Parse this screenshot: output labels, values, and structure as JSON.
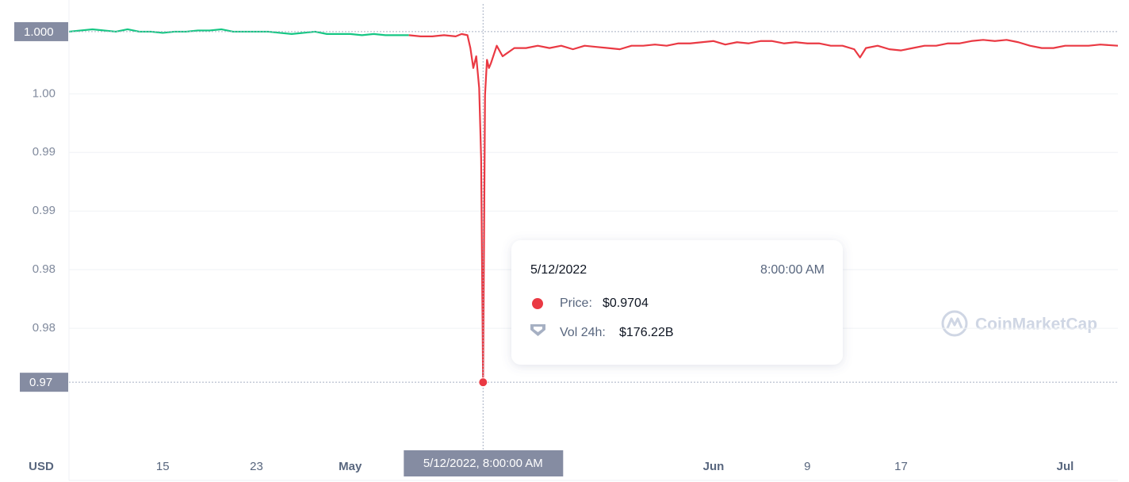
{
  "chart_data": {
    "type": "line",
    "y_axis_label": "USD",
    "watermark": "CoinMarketCap",
    "grid": true,
    "x": [
      "2022-04-07T00:00",
      "2022-04-08T00:00",
      "2022-04-09T00:00",
      "2022-04-10T00:00",
      "2022-04-11T00:00",
      "2022-04-12T00:00",
      "2022-04-13T00:00",
      "2022-04-14T00:00",
      "2022-04-15T00:00",
      "2022-04-16T00:00",
      "2022-04-17T00:00",
      "2022-04-18T00:00",
      "2022-04-19T00:00",
      "2022-04-20T00:00",
      "2022-04-21T00:00",
      "2022-04-22T00:00",
      "2022-04-23T00:00",
      "2022-04-24T00:00",
      "2022-04-25T00:00",
      "2022-04-26T00:00",
      "2022-04-27T00:00",
      "2022-04-28T00:00",
      "2022-04-29T00:00",
      "2022-04-30T00:00",
      "2022-05-01T00:00",
      "2022-05-02T00:00",
      "2022-05-03T00:00",
      "2022-05-04T00:00",
      "2022-05-05T00:00",
      "2022-05-06T00:00",
      "2022-05-07T00:00",
      "2022-05-08T00:00",
      "2022-05-09T00:00",
      "2022-05-10T00:00",
      "2022-05-10T12:00",
      "2022-05-11T00:00",
      "2022-05-11T06:00",
      "2022-05-11T12:00",
      "2022-05-11T18:00",
      "2022-05-12T00:00",
      "2022-05-12T04:00",
      "2022-05-12T08:00",
      "2022-05-12T12:00",
      "2022-05-12T16:00",
      "2022-05-12T20:00",
      "2022-05-13T00:00",
      "2022-05-13T12:00",
      "2022-05-14T00:00",
      "2022-05-15T00:00",
      "2022-05-16T00:00",
      "2022-05-17T00:00",
      "2022-05-18T00:00",
      "2022-05-19T00:00",
      "2022-05-20T00:00",
      "2022-05-21T00:00",
      "2022-05-22T00:00",
      "2022-05-23T00:00",
      "2022-05-24T00:00",
      "2022-05-25T00:00",
      "2022-05-26T00:00",
      "2022-05-27T00:00",
      "2022-05-28T00:00",
      "2022-05-29T00:00",
      "2022-05-30T00:00",
      "2022-05-31T00:00",
      "2022-06-01T00:00",
      "2022-06-02T00:00",
      "2022-06-03T00:00",
      "2022-06-04T00:00",
      "2022-06-05T00:00",
      "2022-06-06T00:00",
      "2022-06-07T00:00",
      "2022-06-08T00:00",
      "2022-06-09T00:00",
      "2022-06-10T00:00",
      "2022-06-11T00:00",
      "2022-06-12T00:00",
      "2022-06-13T00:00",
      "2022-06-13T12:00",
      "2022-06-14T00:00",
      "2022-06-15T00:00",
      "2022-06-16T00:00",
      "2022-06-17T00:00",
      "2022-06-18T00:00",
      "2022-06-19T00:00",
      "2022-06-20T00:00",
      "2022-06-21T00:00",
      "2022-06-22T00:00",
      "2022-06-23T00:00",
      "2022-06-24T00:00",
      "2022-06-25T00:00",
      "2022-06-26T00:00",
      "2022-06-27T00:00",
      "2022-06-28T00:00",
      "2022-06-29T00:00",
      "2022-06-30T00:00",
      "2022-07-01T00:00",
      "2022-07-02T00:00",
      "2022-07-03T00:00",
      "2022-07-04T00:00",
      "2022-07-05T12:00"
    ],
    "series": [
      {
        "color": "#16c784",
        "values": [
          1.0003,
          1.0004,
          1.0005,
          1.0004,
          1.0003,
          1.0005,
          1.0003,
          1.0003,
          1.0002,
          1.0003,
          1.0003,
          1.0004,
          1.0004,
          1.0005,
          1.0003,
          1.0003,
          1.0003,
          1.0003,
          1.0002,
          1.0001,
          1.0002,
          1.0003,
          1.0001,
          1.0001,
          1.0001,
          1.0,
          1.0001,
          1.0,
          1.0,
          1.0,
          null,
          null,
          null,
          null,
          null,
          null,
          null,
          null,
          null,
          null,
          null,
          null,
          null,
          null,
          null,
          null,
          null,
          null,
          null,
          null,
          null,
          null,
          null,
          null,
          null,
          null,
          null,
          null,
          null,
          null,
          null,
          null,
          null,
          null,
          null,
          null,
          null,
          null,
          null,
          null,
          null,
          null,
          null,
          null,
          null,
          null,
          null,
          null,
          null,
          null,
          null,
          null,
          null,
          null,
          null,
          null,
          null,
          null,
          null,
          null,
          null,
          null,
          null,
          null,
          null,
          null,
          null,
          null,
          null,
          null,
          null
        ]
      },
      {
        "color": "#ea3943",
        "values": [
          null,
          null,
          null,
          null,
          null,
          null,
          null,
          null,
          null,
          null,
          null,
          null,
          null,
          null,
          null,
          null,
          null,
          null,
          null,
          null,
          null,
          null,
          null,
          null,
          null,
          null,
          null,
          null,
          null,
          1.0,
          0.9999,
          0.9999,
          1.0,
          0.9999,
          1.0001,
          1.0,
          0.9989,
          0.9972,
          0.9982,
          0.9955,
          0.9895,
          0.9704,
          0.9949,
          0.9979,
          0.9972,
          0.9976,
          0.9991,
          0.9982,
          0.9989,
          0.9989,
          0.9991,
          0.9989,
          0.9991,
          0.9988,
          0.9991,
          0.999,
          0.9989,
          0.9988,
          0.9991,
          0.9991,
          0.9992,
          0.9991,
          0.9993,
          0.9993,
          0.9994,
          0.9995,
          0.9992,
          0.9994,
          0.9993,
          0.9995,
          0.9995,
          0.9993,
          0.9994,
          0.9993,
          0.9993,
          0.9991,
          0.9991,
          0.9988,
          0.9981,
          0.9989,
          0.9991,
          0.9988,
          0.9987,
          0.9989,
          0.9991,
          0.9991,
          0.9993,
          0.9993,
          0.9995,
          0.9996,
          0.9995,
          0.9996,
          0.9994,
          0.9991,
          0.9989,
          0.9989,
          0.9991,
          0.9991,
          0.9991,
          0.9992,
          0.9991
        ]
      }
    ],
    "xlim": [
      "2022-04-07T00:00",
      "2022-07-05T12:00"
    ],
    "xticks": [
      {
        "value": "2022-04-15T00:00",
        "label": "15"
      },
      {
        "value": "2022-04-23T00:00",
        "label": "23"
      },
      {
        "value": "2022-05-01T00:00",
        "label": "May"
      },
      {
        "value": "2022-06-01T00:00",
        "label": "Jun"
      },
      {
        "value": "2022-06-09T00:00",
        "label": "9"
      },
      {
        "value": "2022-06-17T00:00",
        "label": "17"
      },
      {
        "value": "2022-07-01T00:00",
        "label": "Jul"
      }
    ],
    "ylim": [
      0.9648,
      1.003
    ],
    "yticks": [
      {
        "value": 0.995,
        "label": "1.00"
      },
      {
        "value": 0.99,
        "label": "0.99"
      },
      {
        "value": 0.985,
        "label": "0.99"
      },
      {
        "value": 0.98,
        "label": "0.98"
      },
      {
        "value": 0.975,
        "label": "0.98"
      }
    ],
    "current_price": {
      "value": 1.0003,
      "label": "1.000"
    },
    "crosshair": {
      "x": "2022-05-12T08:00",
      "x_label": "5/12/2022, 8:00:00 AM",
      "y": {
        "value": 0.9704,
        "label": "0.97"
      }
    },
    "tooltip": {
      "date": "5/12/2022",
      "time": "8:00:00 AM",
      "price_label": "Price:",
      "price": {
        "value": 0.9704,
        "label": "$0.9704"
      },
      "volume_label": "Vol 24h:",
      "volume": {
        "value": 176220000000,
        "label": "$176.22B"
      }
    }
  }
}
